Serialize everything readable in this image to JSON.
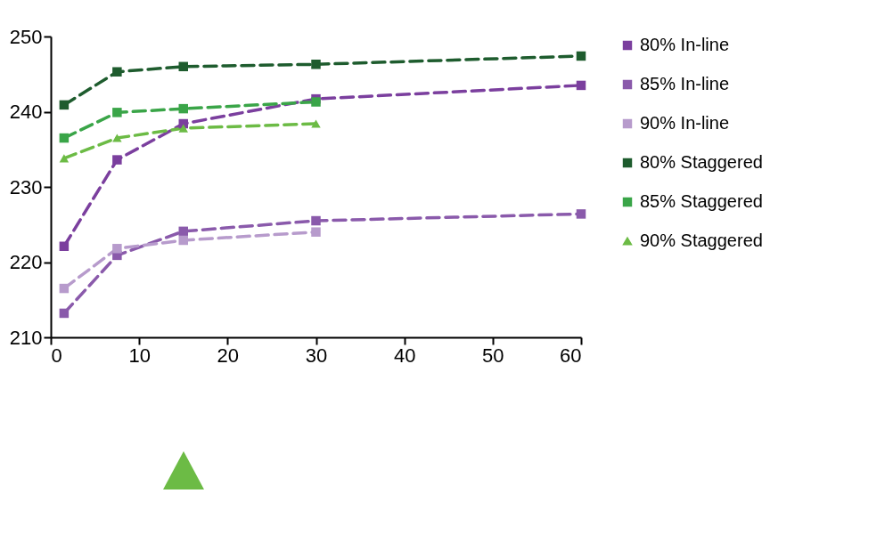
{
  "chart_data": {
    "type": "line",
    "x": [
      1.5,
      7.5,
      15,
      30,
      60
    ],
    "xlim": [
      0,
      60
    ],
    "xticks": [
      0,
      10,
      20,
      30,
      40,
      50,
      60
    ],
    "ylim": [
      210,
      250
    ],
    "yticks": [
      210,
      220,
      230,
      240,
      250
    ],
    "grid": false,
    "legend": "right",
    "line_style": "dashed",
    "marker": "square",
    "series": [
      {
        "name": "80% In-line",
        "color": "#7b3f9e",
        "values": [
          222.1,
          233.6,
          238.4,
          241.7,
          243.5
        ]
      },
      {
        "name": "85% In-line",
        "color": "#8a5aab",
        "values": [
          213.2,
          220.9,
          224.1,
          225.5,
          226.4
        ]
      },
      {
        "name": "90% In-line",
        "color": "#b79bcc",
        "values": [
          216.5,
          221.8,
          222.9,
          224.0,
          null
        ]
      },
      {
        "name": "80% Staggered",
        "color": "#1e5c2e",
        "values": [
          240.9,
          245.3,
          246.0,
          246.3,
          247.4
        ]
      },
      {
        "name": "85% Staggered",
        "color": "#3aa548",
        "values": [
          236.5,
          239.9,
          240.4,
          241.3,
          null
        ]
      },
      {
        "name": "90% Staggered",
        "color": "#6cbb45",
        "marker": "triangle",
        "values": [
          233.8,
          236.5,
          237.8,
          238.4,
          null
        ]
      }
    ]
  }
}
